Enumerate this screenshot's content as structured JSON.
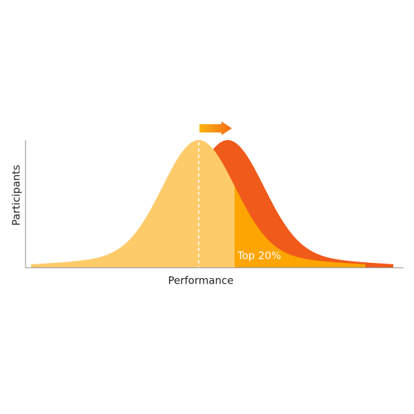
{
  "y_axis_label": "Participants",
  "x_axis_label": "Performance",
  "annotation": "Top 20%"
}
